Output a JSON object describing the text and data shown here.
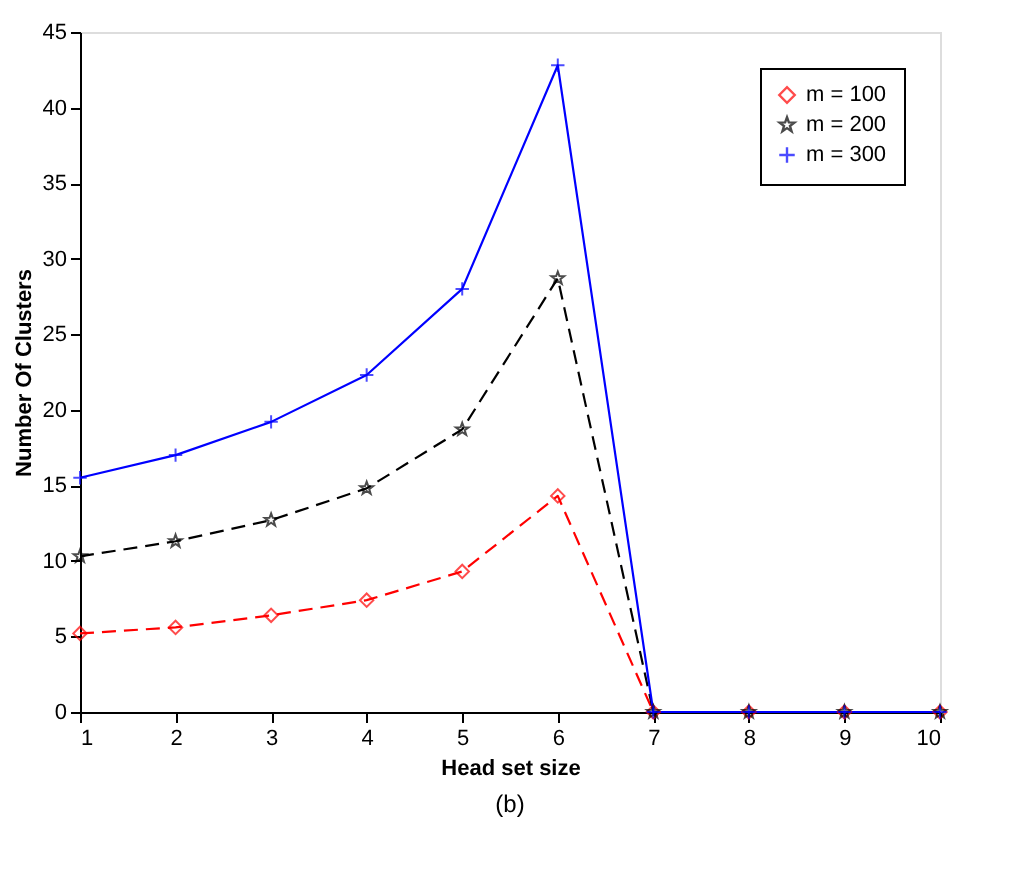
{
  "chart_data": {
    "type": "line",
    "xlabel": "Head set size",
    "ylabel": "Number Of Clusters",
    "x": [
      1,
      2,
      3,
      4,
      5,
      6,
      7,
      8,
      9,
      10
    ],
    "series": [
      {
        "name": "m = 100",
        "color": "#ff0000",
        "marker": "diamond",
        "line_style": "dashed",
        "values": [
          5.2,
          5.6,
          6.4,
          7.4,
          9.3,
          14.3,
          0,
          0,
          0,
          0
        ]
      },
      {
        "name": "m = 200",
        "color": "#000000",
        "marker": "star",
        "line_style": "dashed",
        "values": [
          10.3,
          11.3,
          12.7,
          14.8,
          18.7,
          28.7,
          0,
          0,
          0,
          0
        ]
      },
      {
        "name": "m = 300",
        "color": "#0000ff",
        "marker": "cross",
        "line_style": "solid",
        "values": [
          15.5,
          17,
          19.2,
          22.3,
          28,
          42.8,
          0,
          0,
          0,
          0
        ]
      }
    ],
    "xlim": [
      1,
      10
    ],
    "xticks": [
      1,
      2,
      3,
      4,
      5,
      6,
      7,
      8,
      9,
      10
    ],
    "ylim": [
      0,
      45
    ],
    "yticks": [
      0,
      5,
      10,
      15,
      20,
      25,
      30,
      35,
      40,
      45
    ],
    "grid": false,
    "legend": "top right",
    "annotations": [
      "(b)"
    ]
  }
}
